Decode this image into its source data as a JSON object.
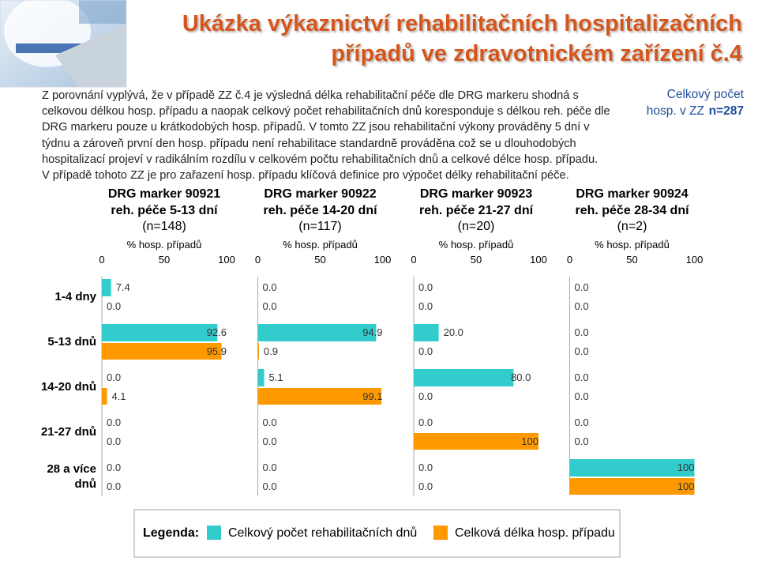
{
  "title": [
    "Ukázka výkaznictví  rehabilitačních hospitalizačních",
    "případů ve zdravotnickém zařízení č.4"
  ],
  "text": [
    "Z porovnání vyplývá, že v případě ZZ č.4 je výsledná délka rehabilitační péče dle DRG markeru shodná s",
    "celkovou délkou hosp. případu a naopak celkový počet rehabilitačních dnů koresponduje s délkou reh. péče dle",
    "DRG markeru pouze u krátkodobých hosp. případů. V tomto ZZ jsou rehabilitační výkony prováděny 5 dní v",
    "týdnu a zároveň první den hosp. případu není rehabilitace standardně prováděna což se u dlouhodobých",
    "hospitalizací projeví v radikálním rozdílu v celkovém počtu rehabilitačních dnů a celkové délce hosp. případu.",
    "V případě tohoto ZZ je pro zařazení hosp. případu klíčová definice pro výpočet délky rehabilitační péče."
  ],
  "note": {
    "lines": [
      "Celkový počet",
      "hosp. v ZZ"
    ],
    "value": "n=287"
  },
  "legend": {
    "title": "Legenda:",
    "items": [
      {
        "label": "Celkový počet rehabilitačních dnů",
        "color": "#33cccc"
      },
      {
        "label": "Celková délka hosp. případu",
        "color": "#ff9900"
      }
    ]
  },
  "chart_data": [
    {
      "type": "hbar",
      "title": "DRG marker 90921",
      "subtitle": [
        "reh. péče 5-13 dní",
        "(n=148)"
      ],
      "x_label": "% hosp. případů",
      "categories": [
        "1-4 dny",
        "5-13 dnů",
        "14-20 dnů",
        "21-27 dnů",
        "28 a více dnů"
      ],
      "xlim": [
        0,
        100
      ],
      "xticks": [
        0,
        50,
        100
      ],
      "series": [
        {
          "color": "#33cccc",
          "values": [
            7.4,
            92.6,
            0,
            0,
            0
          ],
          "value_labels": [
            "7.4",
            "92.6",
            "0.0",
            "0.0",
            "0.0"
          ]
        },
        {
          "color": "#ff9900",
          "values": [
            0,
            95.9,
            4.1,
            0,
            0
          ],
          "value_labels": [
            "0.0",
            "95.9",
            "4.1",
            "0.0",
            "0.0"
          ]
        }
      ]
    },
    {
      "type": "hbar",
      "title": "DRG marker 90922",
      "subtitle": [
        "reh. péče 14-20 dní",
        "(n=117)"
      ],
      "x_label": "% hosp. případů",
      "xlim": [
        0,
        100
      ],
      "xticks": [
        0,
        50,
        100
      ],
      "series": [
        {
          "color": "#33cccc",
          "values": [
            0,
            94.9,
            5.1,
            0,
            0
          ],
          "value_labels": [
            "0.0",
            "94.9",
            "5.1",
            "0.0",
            "0.0"
          ]
        },
        {
          "color": "#ff9900",
          "values": [
            0,
            0.9,
            99.1,
            0,
            0
          ],
          "value_labels": [
            "0.0",
            "0.9",
            "99.1",
            "0.0",
            "0.0"
          ]
        }
      ]
    },
    {
      "type": "hbar",
      "title": "DRG marker 90923",
      "subtitle": [
        "reh. péče 21-27 dní",
        "(n=20)"
      ],
      "x_label": "% hosp. případů",
      "xlim": [
        0,
        100
      ],
      "xticks": [
        0,
        50,
        100
      ],
      "series": [
        {
          "color": "#33cccc",
          "values": [
            0,
            20,
            80,
            0,
            0
          ],
          "value_labels": [
            "0.0",
            "20.0",
            "80.0",
            "0.0",
            "0.0"
          ]
        },
        {
          "color": "#ff9900",
          "values": [
            0,
            0,
            0,
            100,
            0
          ],
          "value_labels": [
            "0.0",
            "0.0",
            "0.0",
            "100",
            "0.0"
          ]
        }
      ]
    },
    {
      "type": "hbar",
      "title": "DRG marker 90924",
      "subtitle": [
        "reh. péče 28-34 dní",
        "(n=2)"
      ],
      "x_label": "% hosp. případů",
      "xlim": [
        0,
        100
      ],
      "xticks": [
        0,
        50,
        100
      ],
      "series": [
        {
          "color": "#33cccc",
          "values": [
            0,
            0,
            0,
            0,
            100
          ],
          "value_labels": [
            "0.0",
            "0.0",
            "0.0",
            "0.0",
            "100"
          ]
        },
        {
          "color": "#ff9900",
          "values": [
            0,
            0,
            0,
            0,
            100
          ],
          "value_labels": [
            "0.0",
            "0.0",
            "0.0",
            "0.0",
            "100"
          ]
        }
      ]
    }
  ]
}
